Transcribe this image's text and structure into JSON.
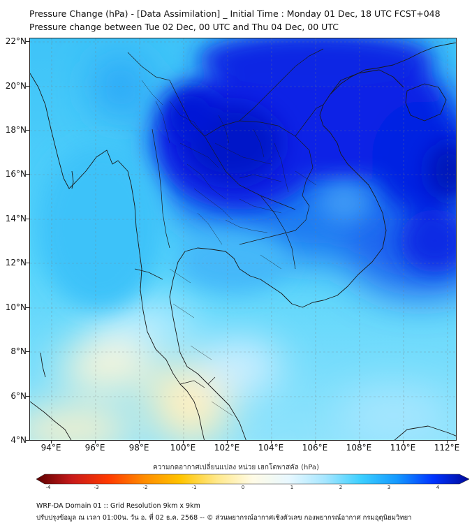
{
  "title_line1": "Pressure Change (hPa) - [Data Assimilation] _ Initial Time : Monday 01 Dec, 18 UTC FCST+048",
  "title_line2": "Pressure change between Tue 02 Dec, 00 UTC and Thu 04 Dec, 00 UTC",
  "lat_labels": [
    "22°N",
    "20°N",
    "18°N",
    "16°N",
    "14°N",
    "12°N",
    "10°N",
    "8°N",
    "6°N",
    "4°N"
  ],
  "lon_labels": [
    "94°E",
    "96°E",
    "98°E",
    "100°E",
    "102°E",
    "104°E",
    "106°E",
    "108°E",
    "110°E",
    "112°E"
  ],
  "colorbar": {
    "title": "ความกดอากาศเปลี่ยนแปลง หน่วย เฮกโตพาสคัล (hPa)",
    "min": -4,
    "max": 4,
    "ticks": [
      "-4",
      "-3",
      "-2",
      "-1",
      "0",
      "1",
      "2",
      "3",
      "4"
    ],
    "colors": [
      "#5c0000",
      "#c81a1a",
      "#ff3a00",
      "#ff8c00",
      "#ffc400",
      "#ffe88a",
      "#fffbe6",
      "#e8f8ff",
      "#a6e6ff",
      "#3ccfff",
      "#1499ff",
      "#0033ff",
      "#000a99"
    ]
  },
  "footer_line1": "WRF-DA Domain 01 :: Grid Resolution 9km x 9km",
  "footer_line2": "ปรับปรุงข้อมูล ณ เวลา 01:00น. วัน อ. ที่ 02 ธ.ค. 2568 -- © ส่วนพยากรณ์อากาศเชิงตัวเลข กองพยากรณ์อากาศ กรมอุตุนิยมวิทยา",
  "colors": {
    "field_light": "#41cdfa",
    "field_deep": "#0a1fe0",
    "field_pale": "#fff0c0",
    "coastline": "#1a1a1a"
  }
}
